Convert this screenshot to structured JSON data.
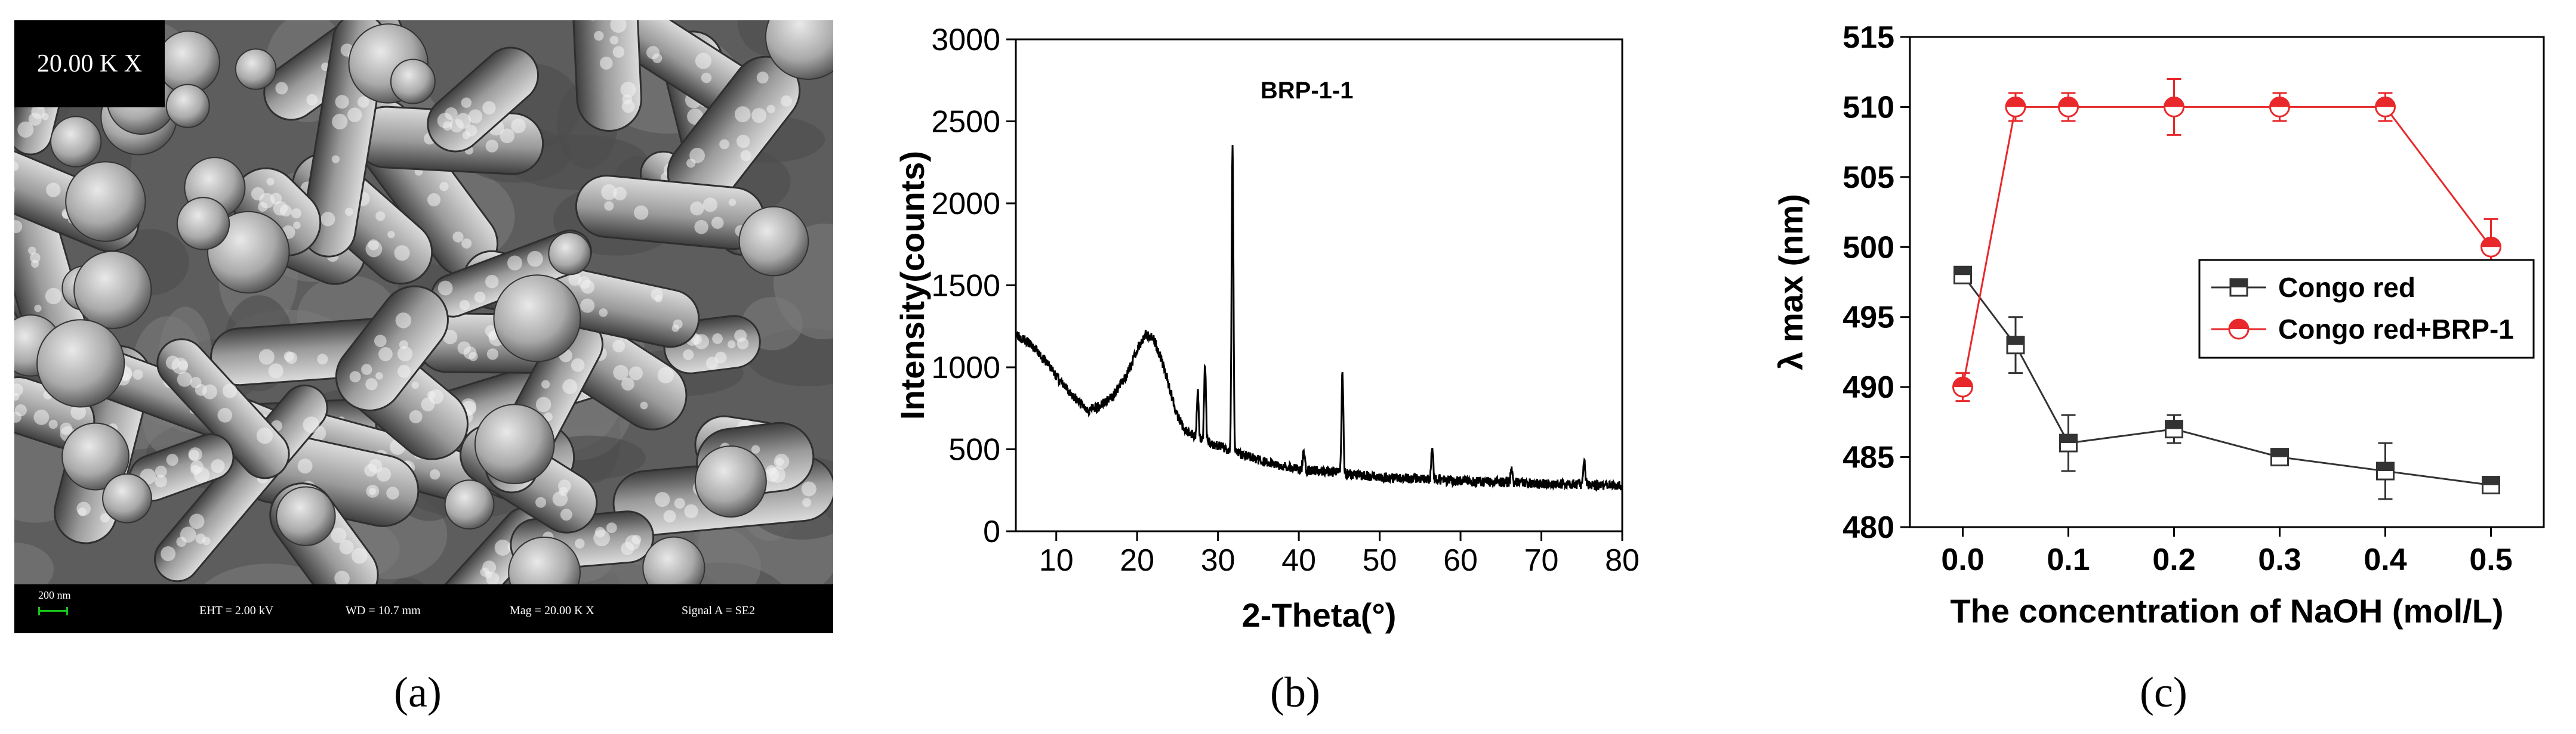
{
  "panel_labels": {
    "a": "(a)",
    "b": "(b)",
    "c": "(c)"
  },
  "sem": {
    "magnification": "20.00 K X",
    "scale_label": "200 nm",
    "eht": "EHT =  2.00 kV",
    "wd": "WD = 10.7 mm",
    "mag": "Mag =  20.00 K X",
    "signal": "Signal A = SE2"
  },
  "chart_data": [
    {
      "type": "line",
      "title": "",
      "annotation": "BRP-1-1",
      "xlabel": "2-Theta(°)",
      "ylabel": "Intensity(counts)",
      "xlim": [
        5,
        80
      ],
      "ylim": [
        0,
        3000
      ],
      "xticks": [
        10,
        20,
        30,
        40,
        50,
        60,
        70,
        80
      ],
      "yticks": [
        0,
        500,
        1000,
        1500,
        2000,
        2500,
        3000
      ],
      "color": "#000000",
      "baseline": [
        [
          5,
          1210
        ],
        [
          7,
          1130
        ],
        [
          9,
          1020
        ],
        [
          11,
          880
        ],
        [
          13,
          780
        ],
        [
          14,
          740
        ],
        [
          15,
          755
        ],
        [
          17,
          820
        ],
        [
          19,
          980
        ],
        [
          20,
          1110
        ],
        [
          21,
          1200
        ],
        [
          22,
          1180
        ],
        [
          23,
          1050
        ],
        [
          24,
          880
        ],
        [
          25,
          700
        ],
        [
          26,
          610
        ],
        [
          28,
          560
        ],
        [
          30,
          520
        ],
        [
          33,
          470
        ],
        [
          36,
          420
        ],
        [
          40,
          380
        ],
        [
          45,
          355
        ],
        [
          50,
          330
        ],
        [
          55,
          320
        ],
        [
          60,
          305
        ],
        [
          65,
          300
        ],
        [
          70,
          290
        ],
        [
          75,
          285
        ],
        [
          80,
          275
        ]
      ],
      "peaks": [
        {
          "x": 27.5,
          "y": 850
        },
        {
          "x": 28.4,
          "y": 1010
        },
        {
          "x": 31.8,
          "y": 2340
        },
        {
          "x": 40.6,
          "y": 500
        },
        {
          "x": 45.4,
          "y": 970
        },
        {
          "x": 56.5,
          "y": 520
        },
        {
          "x": 66.3,
          "y": 380
        },
        {
          "x": 75.3,
          "y": 440
        }
      ]
    },
    {
      "type": "line",
      "title": "",
      "xlabel": "The concentration of NaOH (mol/L)",
      "ylabel": "λ max (nm)",
      "xlim": [
        -0.05,
        0.55
      ],
      "ylim": [
        480,
        515
      ],
      "xticks": [
        0.0,
        0.1,
        0.2,
        0.3,
        0.4,
        0.5
      ],
      "xtick_labels": [
        "0.0",
        "0.1",
        "0.2",
        "0.3",
        "0.4",
        "0.5"
      ],
      "yticks": [
        480,
        485,
        490,
        495,
        500,
        505,
        510,
        515
      ],
      "legend_position": "right",
      "series": [
        {
          "name": "Congo red",
          "color": "#333333",
          "marker": "square-half",
          "x": [
            0.0,
            0.05,
            0.1,
            0.2,
            0.3,
            0.4,
            0.5
          ],
          "y": [
            498,
            493,
            486,
            487,
            485,
            484,
            483
          ],
          "err": [
            0.5,
            2,
            2,
            1,
            0.5,
            2,
            0.5
          ]
        },
        {
          "name": "Congo red+BRP-1",
          "color": "#e8282a",
          "marker": "circle-half",
          "x": [
            0.0,
            0.05,
            0.1,
            0.2,
            0.3,
            0.4,
            0.5
          ],
          "y": [
            490,
            510,
            510,
            510,
            510,
            510,
            500
          ],
          "err": [
            1,
            1,
            1,
            2,
            1,
            1,
            2
          ]
        }
      ]
    }
  ]
}
